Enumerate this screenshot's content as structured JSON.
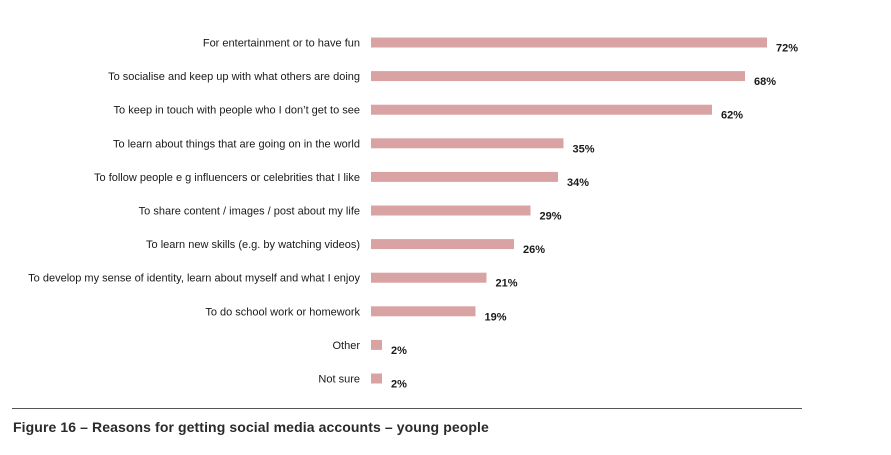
{
  "chart_data": {
    "type": "bar",
    "orientation": "horizontal",
    "categories": [
      "For entertainment or to have fun",
      "To socialise and keep up with what others are doing",
      "To keep in touch with people who I don’t get to see",
      "To learn about things that are going on in the world",
      "To follow people e g  influencers or celebrities that I like",
      "To share content / images / post about my life",
      "To learn new skills (e.g. by watching videos)",
      "To develop my sense of identity, learn about myself and what I enjoy",
      "To do school work or homework",
      "Other",
      "Not sure"
    ],
    "values": [
      72,
      68,
      62,
      35,
      34,
      29,
      26,
      21,
      19,
      2,
      2
    ],
    "value_labels": [
      "72%",
      "68%",
      "62%",
      "35%",
      "34%",
      "29%",
      "26%",
      "21%",
      "19%",
      "2%",
      "2%"
    ],
    "unit": "%",
    "xlim": [
      0,
      100
    ],
    "bar_color": "#d9a3a3",
    "grid": false,
    "legend": "none"
  },
  "caption": "Figure 16 – Reasons for getting social media accounts – young people"
}
